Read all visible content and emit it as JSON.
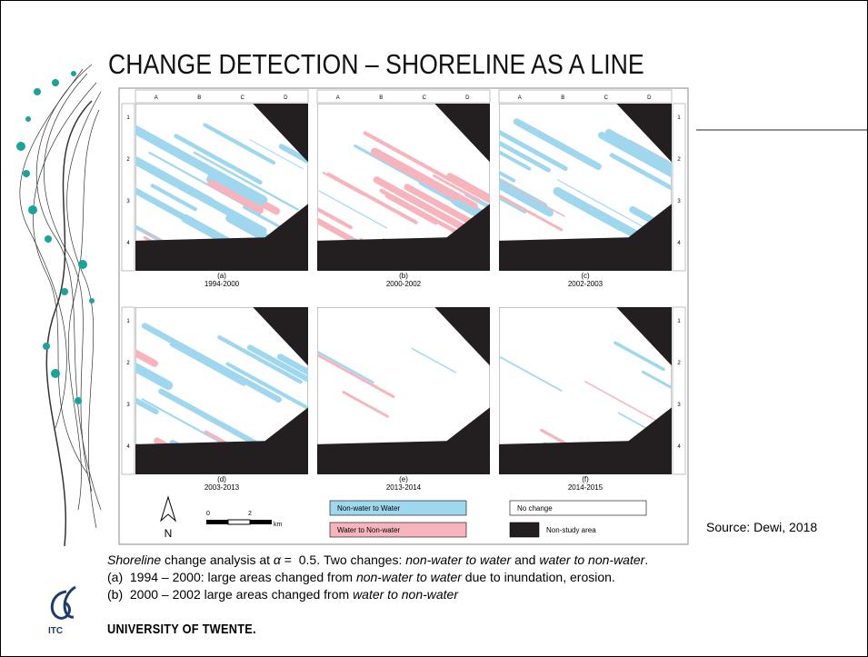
{
  "header": {
    "title": "CHANGE DETECTION – SHORELINE AS A LINE"
  },
  "figure": {
    "columns": [
      "A",
      "B",
      "C",
      "D"
    ],
    "rows": [
      "1",
      "2",
      "3",
      "4"
    ],
    "panels": [
      {
        "label": "(a)",
        "period": "1994-2000"
      },
      {
        "label": "(b)",
        "period": "2000-2002"
      },
      {
        "label": "(c)",
        "period": "2002-2003"
      },
      {
        "label": "(d)",
        "period": "2003-2013"
      },
      {
        "label": "(e)",
        "period": "2013-2014"
      },
      {
        "label": "(f)",
        "period": "2014-2015"
      }
    ],
    "legend": [
      {
        "label": "Non-water to Water",
        "color": "#9fd8ee"
      },
      {
        "label": "Water to Non-water",
        "color": "#f7b4bd"
      },
      {
        "label": "No change",
        "color": "#ffffff"
      },
      {
        "label": "Non-study area",
        "color": "#231f20"
      }
    ],
    "scale_bar": {
      "labels": [
        "0",
        "2",
        "km"
      ]
    },
    "north": "N"
  },
  "source": "Source: Dewi, 2018",
  "caption": [
    [
      {
        "text": "Shoreline",
        "italic": true
      },
      {
        "text": " change analysis at ",
        "italic": false
      },
      {
        "text": "α",
        "italic": true
      },
      {
        "text": " =  0.5. Two changes: ",
        "italic": false
      },
      {
        "text": "non-water to water",
        "italic": true
      },
      {
        "text": " and ",
        "italic": false
      },
      {
        "text": "water to non-water",
        "italic": true
      },
      {
        "text": ".",
        "italic": false
      }
    ],
    [
      {
        "text": "(a)  1994 – 2000: large areas changed from ",
        "italic": false
      },
      {
        "text": "non-water to water",
        "italic": true
      },
      {
        "text": " due to inundation, erosion.",
        "italic": false
      }
    ],
    [
      {
        "text": "(b)  2000 – 2002 large areas changed from ",
        "italic": false
      },
      {
        "text": "water to non-water",
        "italic": true
      }
    ]
  ],
  "footer": {
    "university": "UNIVERSITY OF TWENTE.",
    "logo": "ITC"
  }
}
